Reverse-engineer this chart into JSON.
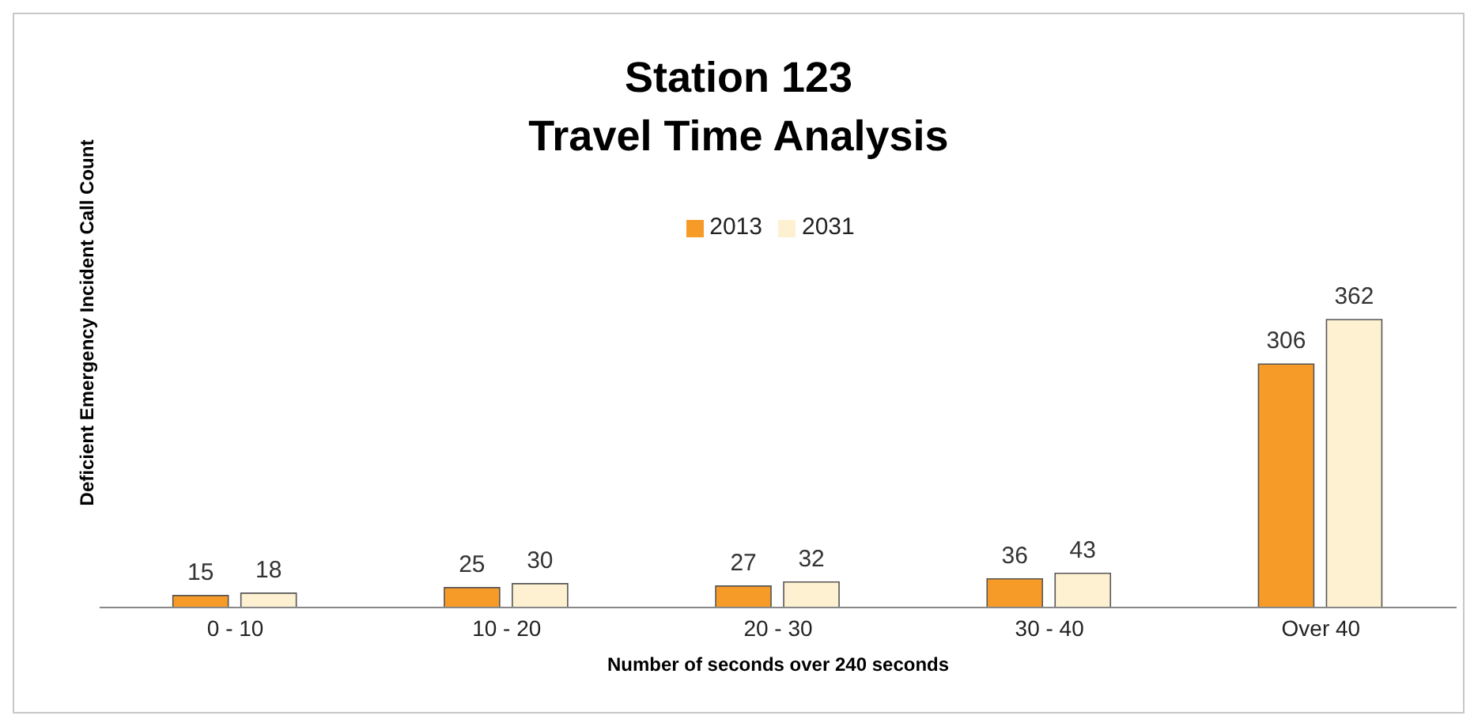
{
  "chart_data": {
    "type": "bar",
    "title": "Station 123\nTravel Time Analysis",
    "xlabel": "Number of seconds over 240 seconds",
    "ylabel": "Deficient Emergency Incident Call Count",
    "categories": [
      "0 - 10",
      "10 - 20",
      "20 - 30",
      "30 - 40",
      "Over 40"
    ],
    "series": [
      {
        "name": "2013",
        "color": "#f79b28",
        "values": [
          15,
          25,
          27,
          36,
          306
        ]
      },
      {
        "name": "2031",
        "color": "#fdf1d2",
        "values": [
          18,
          30,
          32,
          43,
          362
        ]
      }
    ],
    "data_labels": true,
    "legend": "top",
    "grid": false
  }
}
